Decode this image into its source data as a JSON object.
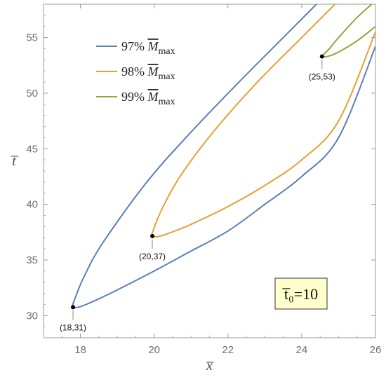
{
  "chart_data": {
    "type": "line",
    "xlabel": "x̅",
    "ylabel": "t̅",
    "xlim": [
      17,
      26
    ],
    "ylim": [
      28,
      58
    ],
    "x_ticks": [
      18,
      20,
      22,
      24,
      26
    ],
    "y_ticks": [
      30,
      35,
      40,
      45,
      50,
      55
    ],
    "legend_position": "top-left",
    "series": [
      {
        "name": "97% M̅max",
        "legend_pct": "97%",
        "legend_sym": "M",
        "legend_sub": "max",
        "color": "#5b7fb8",
        "points": [
          [
            24.4,
            58
          ],
          [
            23.5,
            55
          ],
          [
            22.3,
            51
          ],
          [
            21.0,
            46.5
          ],
          [
            19.8,
            42
          ],
          [
            18.6,
            36.5
          ],
          [
            18.1,
            33.5
          ],
          [
            17.85,
            31.5
          ],
          [
            17.8,
            30.8
          ],
          [
            18.0,
            30.8
          ],
          [
            18.5,
            31.5
          ],
          [
            19.0,
            32.3
          ],
          [
            20.0,
            34.0
          ],
          [
            21.0,
            35.8
          ],
          [
            22.0,
            37.6
          ],
          [
            23.0,
            40.0
          ],
          [
            24.0,
            42.5
          ],
          [
            25.0,
            46.0
          ],
          [
            26.0,
            54.2
          ]
        ]
      },
      {
        "name": "98% M̅max",
        "legend_pct": "98%",
        "legend_sym": "M",
        "legend_sub": "max",
        "color": "#e8a033",
        "points": [
          [
            24.9,
            58
          ],
          [
            24.0,
            55
          ],
          [
            22.8,
            51
          ],
          [
            21.6,
            46.5
          ],
          [
            20.7,
            42.5
          ],
          [
            20.2,
            39.5
          ],
          [
            19.98,
            37.7
          ],
          [
            19.95,
            37.2
          ],
          [
            20.1,
            37.1
          ],
          [
            20.4,
            37.4
          ],
          [
            21.0,
            38.2
          ],
          [
            22.0,
            39.8
          ],
          [
            23.0,
            41.7
          ],
          [
            24.0,
            44.0
          ],
          [
            25.0,
            47.5
          ],
          [
            26.0,
            55.5
          ]
        ]
      },
      {
        "name": "99% M̅max",
        "legend_pct": "99%",
        "legend_sym": "M",
        "legend_sub": "max",
        "color": "#8caa3a",
        "points": [
          [
            25.9,
            58
          ],
          [
            25.5,
            56.8
          ],
          [
            25.0,
            55.0
          ],
          [
            24.75,
            54.0
          ],
          [
            24.6,
            53.5
          ],
          [
            24.55,
            53.3
          ],
          [
            24.7,
            53.3
          ],
          [
            25.0,
            53.7
          ],
          [
            25.5,
            54.7
          ],
          [
            26.0,
            56.0
          ]
        ]
      }
    ],
    "annotations": [
      {
        "label": "(18,31)",
        "x": 17.8,
        "y": 30.75
      },
      {
        "label": "(20,37)",
        "x": 19.95,
        "y": 37.15
      },
      {
        "label": "(25,53)",
        "x": 24.55,
        "y": 53.3
      }
    ],
    "inset": {
      "text": "t̅₀=10",
      "background": "#ffffcc",
      "position": "bottom-right"
    }
  }
}
